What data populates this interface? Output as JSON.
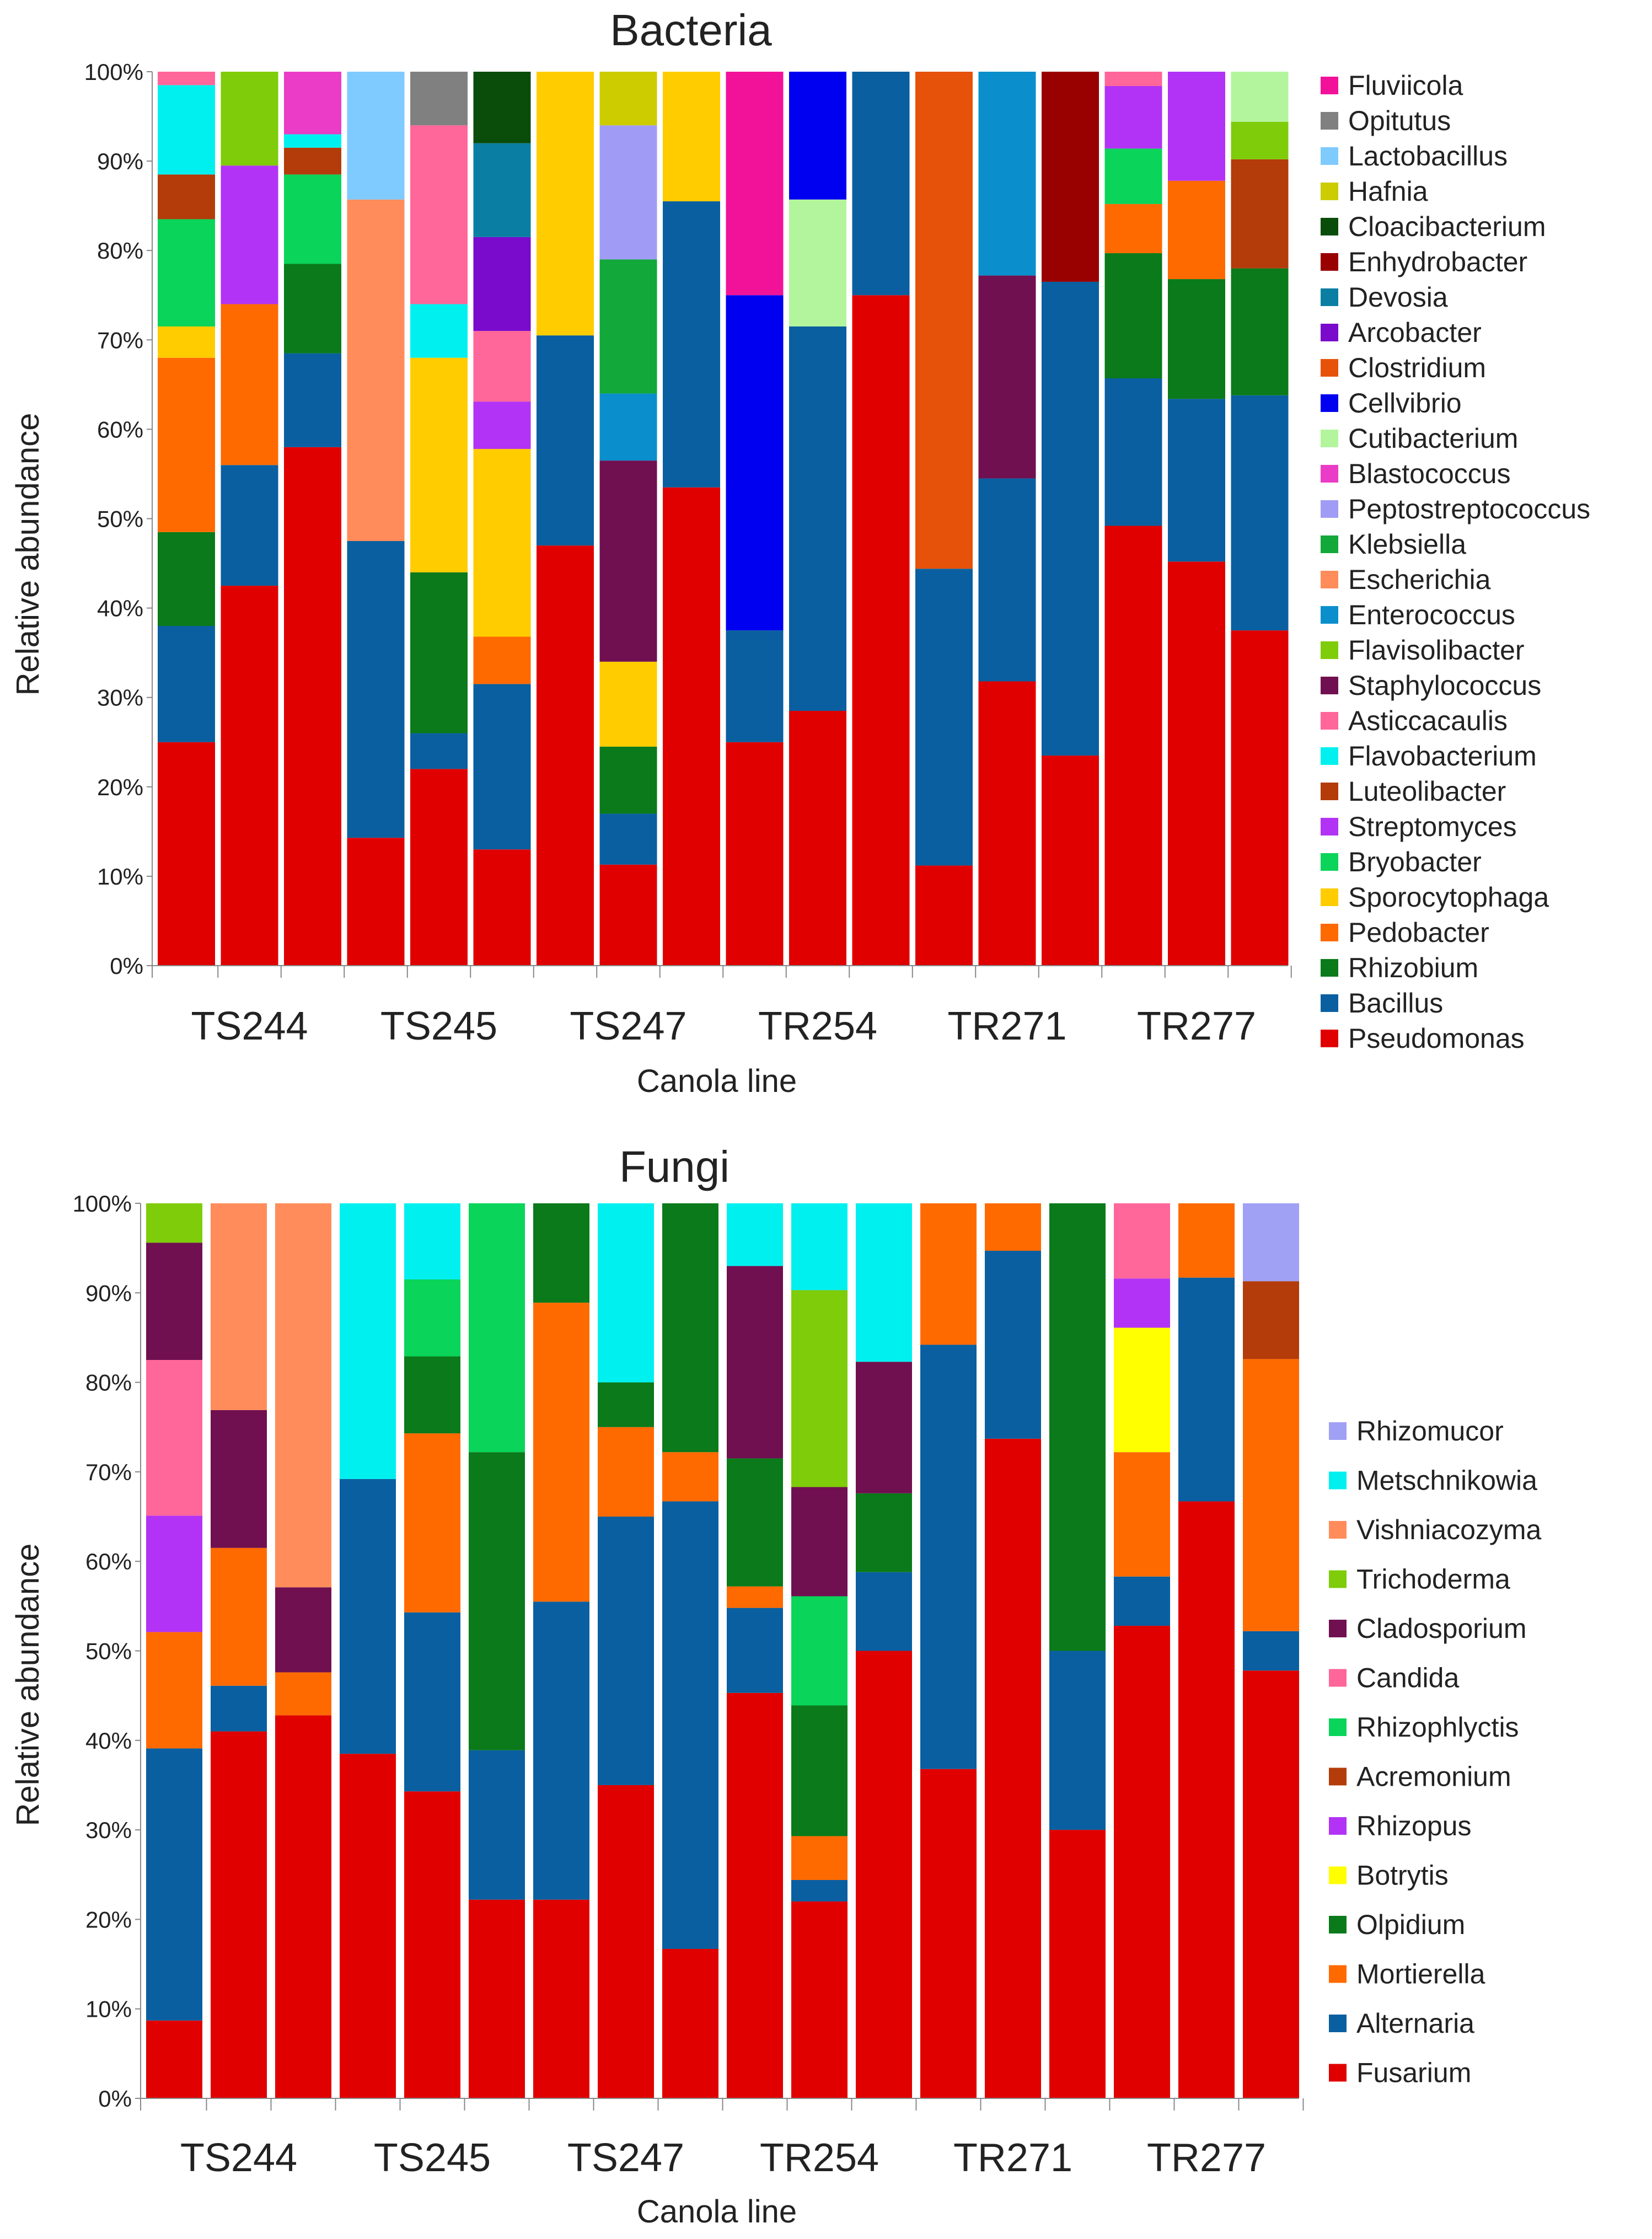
{
  "colors": {
    "Fluviicola": "#f2129a",
    "Opitutus": "#808080",
    "Lactobacillus": "#7fcafe",
    "Hafnia": "#cccc00",
    "Cloacibacterium": "#0a4d0a",
    "Enhydrobacter": "#990000",
    "Devosia": "#0a7fa3",
    "Arcobacter": "#7a0acc",
    "Clostridium": "#e6520a",
    "Cellvibrio": "#0000f0",
    "Cutibacterium": "#b3f59c",
    "Blastococcus": "#ea3cc6",
    "Peptostreptococcus": "#a09cf5",
    "Klebsiella": "#12a83a",
    "Escherichia": "#ff8c5a",
    "Enterococcus": "#0a8fcc",
    "Flavisolibacter": "#7fcc0a",
    "Staphylococcus": "#701050",
    "Asticcacaulis": "#ff6699",
    "Flavobacterium": "#00f0f0",
    "Luteolibacter": "#b33c0a",
    "Streptomyces": "#b233f5",
    "Bryobacter": "#0ad45a",
    "Sporocytophaga": "#ffcc00",
    "Pedobacter": "#ff6a00",
    "Rhizobium": "#0a7a1a",
    "Bacillus": "#0a5fa0",
    "Pseudomonas": "#e00000",
    "Rhizomucor": "#a0a0f5",
    "Metschnikowia": "#00f0f0",
    "Vishniacozyma": "#ff8c5a",
    "Trichoderma": "#7fcc0a",
    "Cladosporium": "#701050",
    "Candida": "#ff6699",
    "Rhizophlyctis": "#0ad45a",
    "Acremonium": "#b33c0a",
    "Rhizopus": "#b233f5",
    "Botrytis": "#ffff00",
    "Olpidium": "#0a7a1a",
    "Mortierella": "#ff6a00",
    "Alternaria": "#0a5fa0",
    "Fusarium": "#e00000"
  },
  "chart_data": [
    {
      "type": "stacked-bar",
      "title": "Bacteria",
      "xlabel": "Canola line",
      "ylabel": "Relative abundance",
      "ylim": [
        0,
        100
      ],
      "yticks": [
        "0%",
        "10%",
        "20%",
        "30%",
        "40%",
        "50%",
        "60%",
        "70%",
        "80%",
        "90%",
        "100%"
      ],
      "groups": [
        "TS244",
        "TS245",
        "TS247",
        "TR254",
        "TR271",
        "TR277"
      ],
      "bars_per_group": 3,
      "legend": [
        "Fluviicola",
        "Opitutus",
        "Lactobacillus",
        "Hafnia",
        "Cloacibacterium",
        "Enhydrobacter",
        "Devosia",
        "Arcobacter",
        "Clostridium",
        "Cellvibrio",
        "Cutibacterium",
        "Blastococcus",
        "Peptostreptococcus",
        "Klebsiella",
        "Escherichia",
        "Enterococcus",
        "Flavisolibacter",
        "Staphylococcus",
        "Asticcacaulis",
        "Flavobacterium",
        "Luteolibacter",
        "Streptomyces",
        "Bryobacter",
        "Sporocytophaga",
        "Pedobacter",
        "Rhizobium",
        "Bacillus",
        "Pseudomonas"
      ],
      "bars": [
        {
          "group": "TS244",
          "segments": [
            [
              "Pseudomonas",
              25
            ],
            [
              "Bacillus",
              13
            ],
            [
              "Rhizobium",
              10.5
            ],
            [
              "Pedobacter",
              19.5
            ],
            [
              "Sporocytophaga",
              3.5
            ],
            [
              "Bryobacter",
              12
            ],
            [
              "Luteolibacter",
              5
            ],
            [
              "Flavobacterium",
              10
            ],
            [
              "Asticcacaulis",
              1.5
            ]
          ]
        },
        {
          "group": "TS244",
          "segments": [
            [
              "Pseudomonas",
              42.5
            ],
            [
              "Bacillus",
              13.5
            ],
            [
              "Pedobacter",
              18
            ],
            [
              "Streptomyces",
              15.5
            ],
            [
              "Flavisolibacter",
              10.5
            ]
          ]
        },
        {
          "group": "TS244",
          "segments": [
            [
              "Pseudomonas",
              58
            ],
            [
              "Bacillus",
              10.5
            ],
            [
              "Rhizobium",
              10
            ],
            [
              "Bryobacter",
              10
            ],
            [
              "Luteolibacter",
              3
            ],
            [
              "Flavobacterium",
              1.5
            ],
            [
              "Blastococcus",
              7
            ]
          ]
        },
        {
          "group": "TS245",
          "segments": [
            [
              "Pseudomonas",
              14.3
            ],
            [
              "Bacillus",
              33.2
            ],
            [
              "Escherichia",
              38.2
            ],
            [
              "Lactobacillus",
              14.3
            ]
          ]
        },
        {
          "group": "TS245",
          "segments": [
            [
              "Pseudomonas",
              22
            ],
            [
              "Bacillus",
              4
            ],
            [
              "Rhizobium",
              18
            ],
            [
              "Sporocytophaga",
              24
            ],
            [
              "Flavobacterium",
              6
            ],
            [
              "Asticcacaulis",
              20
            ],
            [
              "Opitutus",
              6
            ]
          ]
        },
        {
          "group": "TS245",
          "segments": [
            [
              "Pseudomonas",
              13
            ],
            [
              "Bacillus",
              18.5
            ],
            [
              "Pedobacter",
              5.3
            ],
            [
              "Sporocytophaga",
              21
            ],
            [
              "Streptomyces",
              5.3
            ],
            [
              "Asticcacaulis",
              7.9
            ],
            [
              "Arcobacter",
              10.5
            ],
            [
              "Devosia",
              10.5
            ],
            [
              "Cloacibacterium",
              8
            ]
          ]
        },
        {
          "group": "TS247",
          "segments": [
            [
              "Pseudomonas",
              47
            ],
            [
              "Bacillus",
              23.5
            ],
            [
              "Sporocytophaga",
              29.5
            ]
          ]
        },
        {
          "group": "TS247",
          "segments": [
            [
              "Pseudomonas",
              11.3
            ],
            [
              "Bacillus",
              5.7
            ],
            [
              "Rhizobium",
              7.5
            ],
            [
              "Sporocytophaga",
              9.5
            ],
            [
              "Staphylococcus",
              22.5
            ],
            [
              "Enterococcus",
              7.5
            ],
            [
              "Klebsiella",
              15
            ],
            [
              "Peptostreptococcus",
              15
            ],
            [
              "Hafnia",
              6
            ]
          ]
        },
        {
          "group": "TS247",
          "segments": [
            [
              "Pseudomonas",
              53.5
            ],
            [
              "Bacillus",
              32
            ],
            [
              "Sporocytophaga",
              14.5
            ]
          ]
        },
        {
          "group": "TR254",
          "segments": [
            [
              "Pseudomonas",
              25
            ],
            [
              "Bacillus",
              12.5
            ],
            [
              "Cellvibrio",
              37.5
            ],
            [
              "Fluviicola",
              25
            ]
          ]
        },
        {
          "group": "TR254",
          "segments": [
            [
              "Pseudomonas",
              28.5
            ],
            [
              "Bacillus",
              43
            ],
            [
              "Cutibacterium",
              14.2
            ],
            [
              "Cellvibrio",
              14.3
            ]
          ]
        },
        {
          "group": "TR254",
          "segments": [
            [
              "Pseudomonas",
              75
            ],
            [
              "Bacillus",
              25
            ]
          ]
        },
        {
          "group": "TR271",
          "segments": [
            [
              "Pseudomonas",
              11.2
            ],
            [
              "Bacillus",
              33.2
            ],
            [
              "Clostridium",
              55.6
            ]
          ]
        },
        {
          "group": "TR271",
          "segments": [
            [
              "Pseudomonas",
              31.8
            ],
            [
              "Bacillus",
              22.7
            ],
            [
              "Staphylococcus",
              22.7
            ],
            [
              "Enterococcus",
              22.8
            ]
          ]
        },
        {
          "group": "TR271",
          "segments": [
            [
              "Pseudomonas",
              23.5
            ],
            [
              "Bacillus",
              53
            ],
            [
              "Enhydrobacter",
              23.5
            ]
          ]
        },
        {
          "group": "TR277",
          "segments": [
            [
              "Pseudomonas",
              49.2
            ],
            [
              "Bacillus",
              16.5
            ],
            [
              "Rhizobium",
              14
            ],
            [
              "Pedobacter",
              5.5
            ],
            [
              "Bryobacter",
              6.2
            ],
            [
              "Streptomyces",
              7
            ],
            [
              "Asticcacaulis",
              1.6
            ]
          ]
        },
        {
          "group": "TR277",
          "segments": [
            [
              "Pseudomonas",
              45.2
            ],
            [
              "Bacillus",
              18.2
            ],
            [
              "Rhizobium",
              13.4
            ],
            [
              "Pedobacter",
              11
            ],
            [
              "Streptomyces",
              12.2
            ]
          ]
        },
        {
          "group": "TR277",
          "segments": [
            [
              "Pseudomonas",
              37.5
            ],
            [
              "Bacillus",
              26.3
            ],
            [
              "Rhizobium",
              14.2
            ],
            [
              "Luteolibacter",
              12.2
            ],
            [
              "Flavisolibacter",
              4.2
            ],
            [
              "Cutibacterium",
              5.6
            ]
          ]
        }
      ]
    },
    {
      "type": "stacked-bar",
      "title": "Fungi",
      "xlabel": "Canola line",
      "ylabel": "Relative abundance",
      "ylim": [
        0,
        100
      ],
      "yticks": [
        "0%",
        "10%",
        "20%",
        "30%",
        "40%",
        "50%",
        "60%",
        "70%",
        "80%",
        "90%",
        "100%"
      ],
      "groups": [
        "TS244",
        "TS245",
        "TS247",
        "TR254",
        "TR271",
        "TR277"
      ],
      "bars_per_group": 3,
      "legend": [
        "Rhizomucor",
        "Metschnikowia",
        "Vishniacozyma",
        "Trichoderma",
        "Cladosporium",
        "Candida",
        "Rhizophlyctis",
        "Acremonium",
        "Rhizopus",
        "Botrytis",
        "Olpidium",
        "Mortierella",
        "Alternaria",
        "Fusarium"
      ],
      "bars": [
        {
          "group": "TS244",
          "segments": [
            [
              "Fusarium",
              8.7
            ],
            [
              "Alternaria",
              30.4
            ],
            [
              "Mortierella",
              13
            ],
            [
              "Rhizopus",
              13
            ],
            [
              "Candida",
              17.4
            ],
            [
              "Cladosporium",
              13.1
            ],
            [
              "Trichoderma",
              4.4
            ]
          ]
        },
        {
          "group": "TS244",
          "segments": [
            [
              "Fusarium",
              41
            ],
            [
              "Alternaria",
              5.1
            ],
            [
              "Mortierella",
              15.4
            ],
            [
              "Cladosporium",
              15.4
            ],
            [
              "Vishniacozyma",
              23.1
            ]
          ]
        },
        {
          "group": "TS244",
          "segments": [
            [
              "Fusarium",
              42.8
            ],
            [
              "Mortierella",
              4.8
            ],
            [
              "Cladosporium",
              9.5
            ],
            [
              "Vishniacozyma",
              42.9
            ]
          ]
        },
        {
          "group": "TS245",
          "segments": [
            [
              "Fusarium",
              38.5
            ],
            [
              "Alternaria",
              30.7
            ],
            [
              "Metschnikowia",
              30.8
            ]
          ]
        },
        {
          "group": "TS245",
          "segments": [
            [
              "Fusarium",
              34.3
            ],
            [
              "Alternaria",
              20
            ],
            [
              "Mortierella",
              20
            ],
            [
              "Olpidium",
              8.6
            ],
            [
              "Rhizophlyctis",
              8.6
            ],
            [
              "Metschnikowia",
              8.5
            ]
          ]
        },
        {
          "group": "TS245",
          "segments": [
            [
              "Fusarium",
              22.2
            ],
            [
              "Alternaria",
              16.7
            ],
            [
              "Olpidium",
              33.3
            ],
            [
              "Rhizophlyctis",
              27.8
            ]
          ]
        },
        {
          "group": "TS247",
          "segments": [
            [
              "Fusarium",
              22.2
            ],
            [
              "Alternaria",
              33.3
            ],
            [
              "Mortierella",
              33.4
            ],
            [
              "Olpidium",
              11.1
            ]
          ]
        },
        {
          "group": "TS247",
          "segments": [
            [
              "Fusarium",
              35
            ],
            [
              "Alternaria",
              30
            ],
            [
              "Mortierella",
              10
            ],
            [
              "Olpidium",
              5
            ],
            [
              "Metschnikowia",
              20
            ]
          ]
        },
        {
          "group": "TS247",
          "segments": [
            [
              "Fusarium",
              16.7
            ],
            [
              "Alternaria",
              50
            ],
            [
              "Mortierella",
              5.5
            ],
            [
              "Olpidium",
              27.8
            ]
          ]
        },
        {
          "group": "TR254",
          "segments": [
            [
              "Fusarium",
              45.3
            ],
            [
              "Alternaria",
              9.5
            ],
            [
              "Mortierella",
              2.4
            ],
            [
              "Olpidium",
              14.3
            ],
            [
              "Cladosporium",
              21.5
            ],
            [
              "Metschnikowia",
              7
            ]
          ]
        },
        {
          "group": "TR254",
          "segments": [
            [
              "Fusarium",
              22
            ],
            [
              "Alternaria",
              2.4
            ],
            [
              "Mortierella",
              4.9
            ],
            [
              "Olpidium",
              14.6
            ],
            [
              "Rhizophlyctis",
              12.2
            ],
            [
              "Cladosporium",
              12.2
            ],
            [
              "Trichoderma",
              22
            ],
            [
              "Metschnikowia",
              9.7
            ]
          ]
        },
        {
          "group": "TR254",
          "segments": [
            [
              "Fusarium",
              50
            ],
            [
              "Alternaria",
              8.8
            ],
            [
              "Olpidium",
              8.8
            ],
            [
              "Cladosporium",
              14.7
            ],
            [
              "Metschnikowia",
              17.7
            ]
          ]
        },
        {
          "group": "TR271",
          "segments": [
            [
              "Fusarium",
              36.8
            ],
            [
              "Alternaria",
              47.4
            ],
            [
              "Mortierella",
              15.8
            ]
          ]
        },
        {
          "group": "TR271",
          "segments": [
            [
              "Fusarium",
              73.7
            ],
            [
              "Alternaria",
              21
            ],
            [
              "Mortierella",
              5.3
            ]
          ]
        },
        {
          "group": "TR271",
          "segments": [
            [
              "Fusarium",
              30
            ],
            [
              "Alternaria",
              20
            ],
            [
              "Olpidium",
              50
            ]
          ]
        },
        {
          "group": "TR277",
          "segments": [
            [
              "Fusarium",
              52.8
            ],
            [
              "Alternaria",
              5.5
            ],
            [
              "Mortierella",
              13.9
            ],
            [
              "Botrytis",
              13.9
            ],
            [
              "Rhizopus",
              5.5
            ],
            [
              "Candida",
              8.4
            ]
          ]
        },
        {
          "group": "TR277",
          "segments": [
            [
              "Fusarium",
              66.7
            ],
            [
              "Alternaria",
              25
            ],
            [
              "Mortierella",
              8.3
            ]
          ]
        },
        {
          "group": "TR277",
          "segments": [
            [
              "Fusarium",
              47.8
            ],
            [
              "Alternaria",
              4.4
            ],
            [
              "Mortierella",
              30.4
            ],
            [
              "Acremonium",
              8.7
            ],
            [
              "Rhizomucor",
              8.7
            ]
          ]
        }
      ]
    }
  ]
}
